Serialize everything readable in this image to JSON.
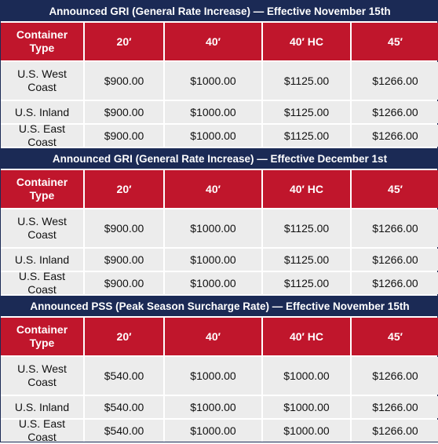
{
  "sections": [
    {
      "title": "Announced GRI  (General Rate Increase) — Effective November 15th",
      "header": [
        "Container Type",
        "20′",
        "40′",
        "40′ HC",
        "45′"
      ],
      "rows": [
        [
          "U.S. West Coast",
          "$900.00",
          "$1000.00",
          "$1125.00",
          "$1266.00"
        ],
        [
          "U.S. Inland",
          "$900.00",
          "$1000.00",
          "$1125.00",
          "$1266.00"
        ],
        [
          "U.S. East Coast",
          "$900.00",
          "$1000.00",
          "$1125.00",
          "$1266.00"
        ]
      ]
    },
    {
      "title": "Announced GRI  (General Rate Increase) — Effective December 1st",
      "header": [
        "Container Type",
        "20′",
        "40′",
        "40′ HC",
        "45′"
      ],
      "rows": [
        [
          "U.S. West Coast",
          "$900.00",
          "$1000.00",
          "$1125.00",
          "$1266.00"
        ],
        [
          "U.S. Inland",
          "$900.00",
          "$1000.00",
          "$1125.00",
          "$1266.00"
        ],
        [
          "U.S. East Coast",
          "$900.00",
          "$1000.00",
          "$1125.00",
          "$1266.00"
        ]
      ]
    },
    {
      "title": "Announced PSS  (Peak Season Surcharge Rate) — Effective November 15th",
      "header": [
        "Container Type",
        "20′",
        "40′",
        "40′ HC",
        "45′"
      ],
      "rows": [
        [
          "U.S. West Coast",
          "$540.00",
          "$1000.00",
          "$1000.00",
          "$1266.00"
        ],
        [
          "U.S. Inland",
          "$540.00",
          "$1000.00",
          "$1000.00",
          "$1266.00"
        ],
        [
          "U.S. East Coast",
          "$540.00",
          "$1000.00",
          "$1000.00",
          "$1266.00"
        ]
      ]
    }
  ]
}
